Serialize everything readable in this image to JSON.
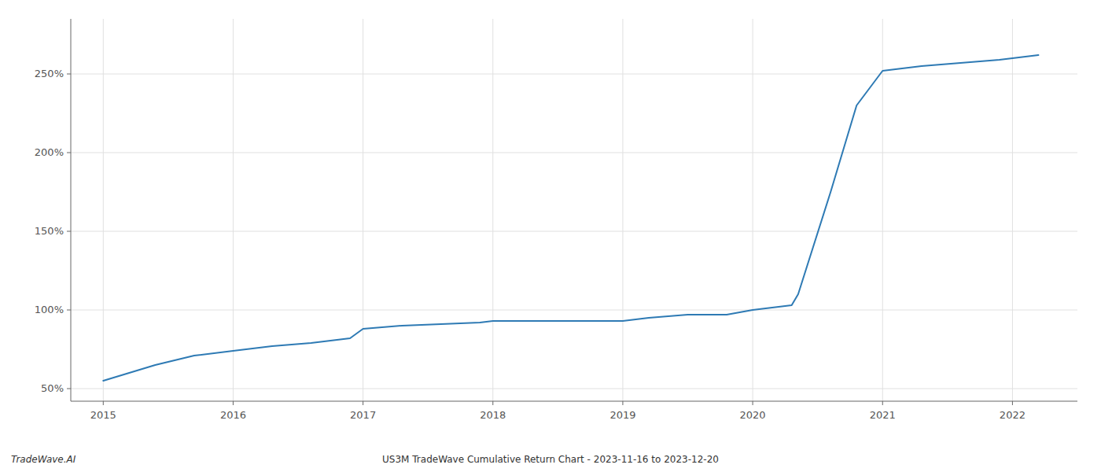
{
  "chart_data": {
    "type": "line",
    "title": "US3M TradeWave Cumulative Return Chart - 2023-11-16 to 2023-12-20",
    "annotations": [
      "TradeWave.AI"
    ],
    "x": [
      2015.0,
      2015.2,
      2015.4,
      2015.7,
      2016.0,
      2016.3,
      2016.6,
      2016.9,
      2017.0,
      2017.3,
      2017.6,
      2017.9,
      2018.0,
      2018.3,
      2018.5,
      2018.8,
      2019.0,
      2019.2,
      2019.5,
      2019.8,
      2020.0,
      2020.3,
      2020.35,
      2020.6,
      2020.8,
      2021.0,
      2021.3,
      2021.6,
      2021.9,
      2022.0,
      2022.2
    ],
    "values": [
      55,
      60,
      65,
      71,
      74,
      77,
      79,
      82,
      88,
      90,
      91,
      92,
      93,
      93,
      93,
      93,
      93,
      95,
      97,
      97,
      100,
      103,
      110,
      175,
      230,
      252,
      255,
      257,
      259,
      260,
      262
    ],
    "color": "#2e7ab4",
    "xlim": [
      2014.75,
      2022.5
    ],
    "ylim": [
      42,
      285
    ],
    "xticks": [
      2015,
      2016,
      2017,
      2018,
      2019,
      2020,
      2021,
      2022
    ],
    "yticks": [
      {
        "value": 50,
        "label": "50%"
      },
      {
        "value": 100,
        "label": "100%"
      },
      {
        "value": 150,
        "label": "150%"
      },
      {
        "value": 200,
        "label": "200%"
      },
      {
        "value": 250,
        "label": "250%"
      }
    ],
    "grid": true
  }
}
